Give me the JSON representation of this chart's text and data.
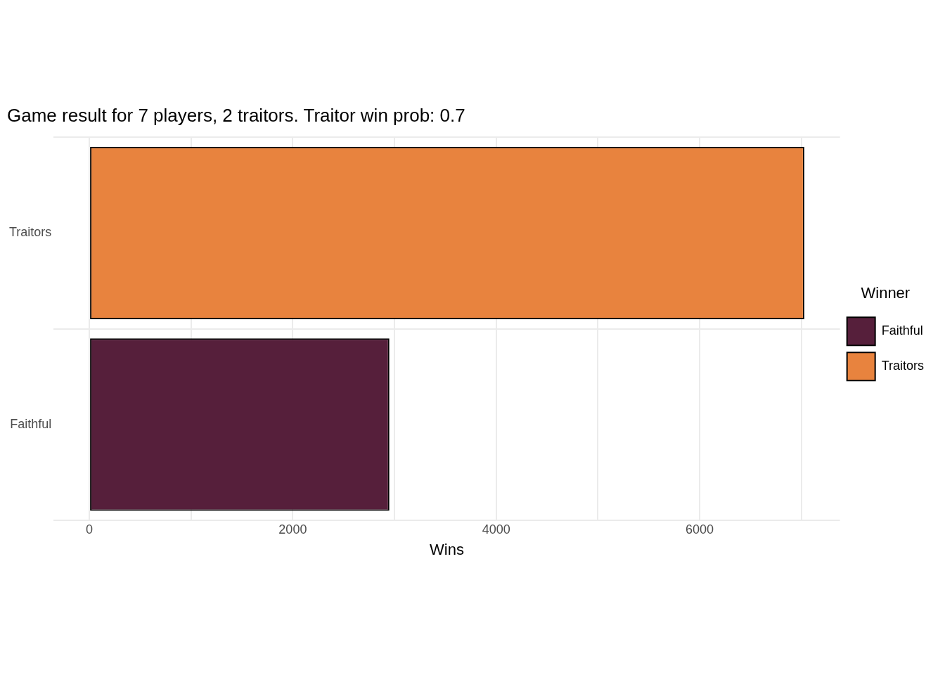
{
  "chart_data": {
    "type": "bar",
    "orientation": "horizontal",
    "stacked": true,
    "title": "Game result for 7 players, 2 traitors. Traitor win prob: 0.7",
    "xlabel": "Wins",
    "legend_title": "Winner",
    "categories": [
      "Traitors",
      "Faithful"
    ],
    "series": [
      {
        "name": "Faithful",
        "color": "#561f3b",
        "values": [
          null,
          2950
        ]
      },
      {
        "name": "Traitors",
        "color": "#e8833e",
        "values": [
          7030,
          null
        ]
      }
    ],
    "xlim": [
      -351,
      7381
    ],
    "xticks": [
      0,
      {
        "value": 1000,
        "label": null
      },
      2000,
      {
        "value": 3000,
        "label": null
      },
      4000,
      {
        "value": 5000,
        "label": null
      },
      6000,
      {
        "value": 7000,
        "label": null
      }
    ],
    "grid": true,
    "legend": "right"
  }
}
